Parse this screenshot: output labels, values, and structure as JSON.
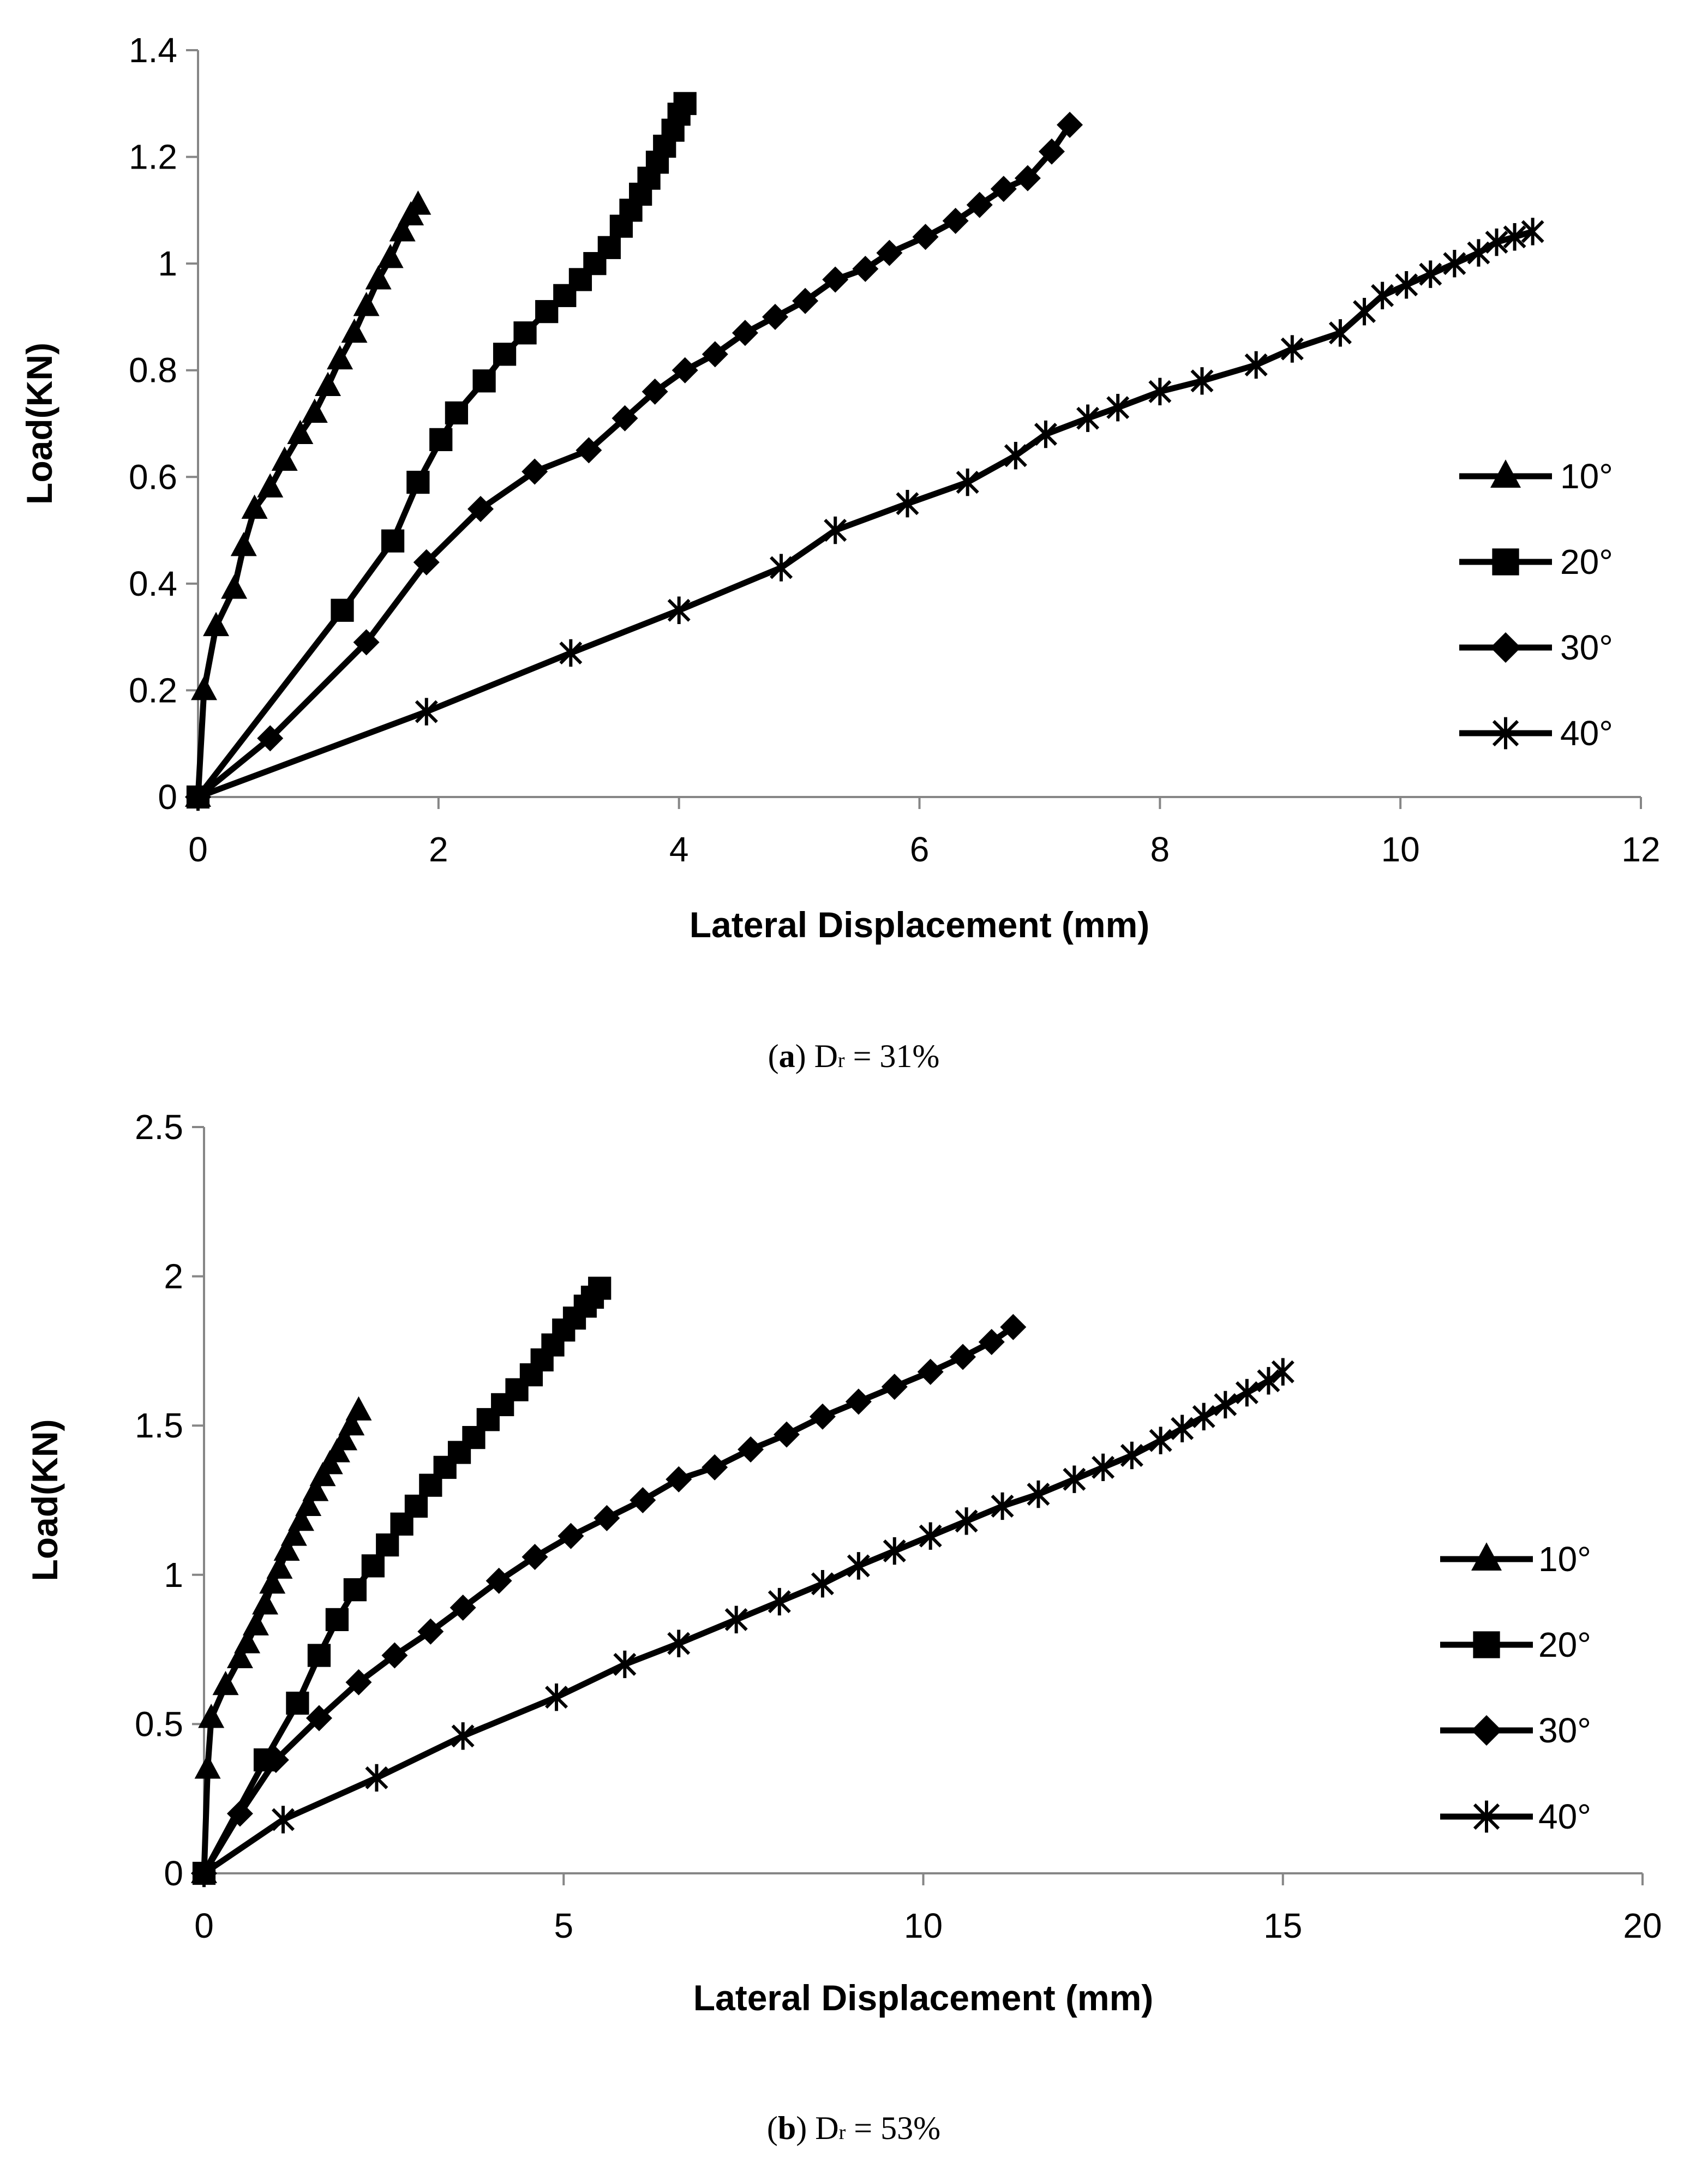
{
  "chart_data": [
    {
      "type": "line",
      "panel": "a",
      "caption": {
        "letter": "a",
        "variable": "D",
        "subscript": "r",
        "rest": " = 31%"
      },
      "xlabel": "Lateral Displacement (mm)",
      "ylabel": "Load(KN)",
      "xlim": [
        0,
        12
      ],
      "ylim": [
        0,
        1.4
      ],
      "xticks": [
        0,
        2,
        4,
        6,
        8,
        10,
        12
      ],
      "yticks": [
        0,
        0.2,
        0.4,
        0.6,
        0.8,
        1,
        1.2,
        1.4
      ],
      "ytick_labels": [
        "0",
        "0.2",
        "0.4",
        "0.6",
        "0.8",
        "1",
        "1.2",
        "1.4"
      ],
      "legend_position": "right",
      "series": [
        {
          "name": "10°",
          "marker": "triangle",
          "x": [
            0,
            0.05,
            0.15,
            0.3,
            0.38,
            0.47,
            0.6,
            0.72,
            0.85,
            0.97,
            1.08,
            1.18,
            1.3,
            1.4,
            1.5,
            1.6,
            1.7,
            1.77,
            1.83
          ],
          "y": [
            0,
            0.2,
            0.32,
            0.39,
            0.47,
            0.54,
            0.58,
            0.63,
            0.68,
            0.72,
            0.77,
            0.82,
            0.87,
            0.92,
            0.97,
            1.01,
            1.06,
            1.09,
            1.11
          ]
        },
        {
          "name": "20°",
          "marker": "square",
          "x": [
            0,
            1.2,
            1.62,
            1.83,
            2.02,
            2.15,
            2.38,
            2.55,
            2.72,
            2.9,
            3.05,
            3.18,
            3.3,
            3.42,
            3.52,
            3.6,
            3.68,
            3.75,
            3.82,
            3.88,
            3.95,
            4.0,
            4.05
          ],
          "y": [
            0,
            0.35,
            0.48,
            0.59,
            0.67,
            0.72,
            0.78,
            0.83,
            0.87,
            0.91,
            0.94,
            0.97,
            1.0,
            1.03,
            1.07,
            1.1,
            1.13,
            1.16,
            1.19,
            1.22,
            1.25,
            1.28,
            1.3
          ]
        },
        {
          "name": "30°",
          "marker": "diamond",
          "x": [
            0,
            0.6,
            1.4,
            1.9,
            2.35,
            2.8,
            3.25,
            3.55,
            3.8,
            4.05,
            4.3,
            4.55,
            4.8,
            5.05,
            5.3,
            5.55,
            5.75,
            6.05,
            6.3,
            6.5,
            6.7,
            6.9,
            7.1,
            7.25
          ],
          "y": [
            0,
            0.11,
            0.29,
            0.44,
            0.54,
            0.61,
            0.65,
            0.71,
            0.76,
            0.8,
            0.83,
            0.87,
            0.9,
            0.93,
            0.97,
            0.99,
            1.02,
            1.05,
            1.08,
            1.11,
            1.14,
            1.16,
            1.21,
            1.26
          ]
        },
        {
          "name": "40°",
          "marker": "star",
          "x": [
            0,
            1.9,
            3.1,
            4.0,
            4.85,
            5.3,
            5.9,
            6.4,
            6.8,
            7.05,
            7.4,
            7.65,
            8.0,
            8.35,
            8.8,
            9.1,
            9.5,
            9.7,
            9.85,
            10.05,
            10.25,
            10.45,
            10.65,
            10.8,
            10.95,
            11.1
          ],
          "y": [
            0,
            0.16,
            0.27,
            0.35,
            0.43,
            0.5,
            0.55,
            0.59,
            0.64,
            0.68,
            0.71,
            0.73,
            0.76,
            0.78,
            0.81,
            0.84,
            0.87,
            0.91,
            0.94,
            0.96,
            0.98,
            1.0,
            1.02,
            1.04,
            1.05,
            1.06
          ]
        }
      ]
    },
    {
      "type": "line",
      "panel": "b",
      "caption": {
        "letter": "b",
        "variable": "D",
        "subscript": "r",
        "rest": " = 53%"
      },
      "xlabel": "Lateral Displacement (mm)",
      "ylabel": "Load(KN)",
      "xlim": [
        0,
        20
      ],
      "ylim": [
        0,
        2.5
      ],
      "xticks": [
        0,
        5,
        10,
        15,
        20
      ],
      "yticks": [
        0,
        0.5,
        1,
        1.5,
        2,
        2.5
      ],
      "ytick_labels": [
        "0",
        "0.5",
        "1",
        "1.5",
        "2",
        "2.5"
      ],
      "legend_position": "right",
      "series": [
        {
          "name": "10°",
          "marker": "triangle",
          "x": [
            0,
            0.05,
            0.1,
            0.3,
            0.5,
            0.6,
            0.72,
            0.85,
            0.95,
            1.05,
            1.15,
            1.25,
            1.35,
            1.45,
            1.55,
            1.65,
            1.75,
            1.85,
            1.95,
            2.05,
            2.15
          ],
          "y": [
            0,
            0.35,
            0.52,
            0.63,
            0.72,
            0.77,
            0.83,
            0.9,
            0.97,
            1.02,
            1.08,
            1.13,
            1.18,
            1.23,
            1.28,
            1.33,
            1.37,
            1.41,
            1.45,
            1.5,
            1.55
          ]
        },
        {
          "name": "20°",
          "marker": "square",
          "x": [
            0,
            0.85,
            1.3,
            1.6,
            1.85,
            2.1,
            2.35,
            2.55,
            2.75,
            2.95,
            3.15,
            3.35,
            3.55,
            3.75,
            3.95,
            4.15,
            4.35,
            4.55,
            4.7,
            4.85,
            5.0,
            5.15,
            5.3,
            5.4,
            5.5
          ],
          "y": [
            0,
            0.38,
            0.57,
            0.73,
            0.85,
            0.95,
            1.03,
            1.1,
            1.17,
            1.23,
            1.3,
            1.36,
            1.41,
            1.46,
            1.52,
            1.57,
            1.62,
            1.67,
            1.72,
            1.77,
            1.82,
            1.86,
            1.9,
            1.93,
            1.96
          ]
        },
        {
          "name": "30°",
          "marker": "diamond",
          "x": [
            0,
            0.5,
            1.0,
            1.6,
            2.15,
            2.65,
            3.15,
            3.6,
            4.1,
            4.6,
            5.1,
            5.6,
            6.1,
            6.6,
            7.1,
            7.6,
            8.1,
            8.6,
            9.1,
            9.6,
            10.1,
            10.55,
            10.95,
            11.25
          ],
          "y": [
            0,
            0.2,
            0.38,
            0.52,
            0.64,
            0.73,
            0.81,
            0.89,
            0.98,
            1.06,
            1.13,
            1.19,
            1.25,
            1.32,
            1.36,
            1.42,
            1.47,
            1.53,
            1.58,
            1.63,
            1.68,
            1.73,
            1.78,
            1.83
          ]
        },
        {
          "name": "40°",
          "marker": "star",
          "x": [
            0,
            1.1,
            2.4,
            3.6,
            4.9,
            5.85,
            6.6,
            7.4,
            8.0,
            8.6,
            9.1,
            9.6,
            10.1,
            10.6,
            11.1,
            11.6,
            12.1,
            12.5,
            12.9,
            13.3,
            13.6,
            13.9,
            14.2,
            14.5,
            14.8,
            15.0
          ],
          "y": [
            0,
            0.18,
            0.32,
            0.46,
            0.59,
            0.7,
            0.77,
            0.85,
            0.91,
            0.97,
            1.03,
            1.08,
            1.13,
            1.18,
            1.23,
            1.27,
            1.32,
            1.36,
            1.4,
            1.45,
            1.49,
            1.53,
            1.57,
            1.61,
            1.65,
            1.68
          ]
        }
      ]
    }
  ]
}
